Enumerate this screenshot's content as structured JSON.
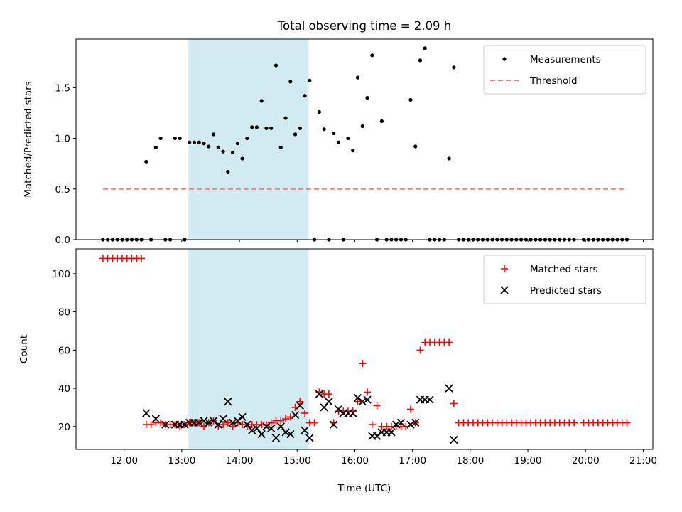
{
  "chart_data": {
    "title": "Total observing time = 2.09 h",
    "highlight_span": {
      "start": "13:07",
      "end": "15:12",
      "color": "#add8e6"
    },
    "x_axis": {
      "label": "Time (UTC)",
      "range": [
        "11:10",
        "21:10"
      ],
      "ticks": [
        "12:00",
        "13:00",
        "14:00",
        "15:00",
        "16:00",
        "17:00",
        "18:00",
        "19:00",
        "20:00",
        "21:00"
      ]
    },
    "panels": [
      {
        "type": "scatter",
        "ylabel": "Matched/Predicted stars",
        "ylim": [
          0,
          1.98
        ],
        "yticks": [
          "0.0",
          "0.5",
          "1.0",
          "1.5"
        ],
        "ytick_values": [
          0,
          0.5,
          1.0,
          1.5
        ],
        "legend": {
          "position": "upper right",
          "entries": [
            "Measurements",
            "Threshold"
          ]
        },
        "series": [
          {
            "name": "Measurements",
            "marker": "dot",
            "color": "#000000",
            "x": [
              "11:38",
              "11:43",
              "11:48",
              "11:53",
              "11:58",
              "12:03",
              "12:08",
              "12:13",
              "12:18",
              "12:23",
              "12:28",
              "12:33",
              "12:38",
              "12:43",
              "12:53",
              "12:48",
              "12:58",
              "13:03",
              "13:08",
              "13:13",
              "13:18",
              "13:23",
              "13:28",
              "13:33",
              "13:38",
              "13:43",
              "13:48",
              "13:53",
              "13:58",
              "14:03",
              "14:08",
              "14:13",
              "14:18",
              "14:23",
              "14:28",
              "14:33",
              "14:38",
              "14:43",
              "14:48",
              "14:53",
              "14:58",
              "15:03",
              "15:08",
              "15:13",
              "15:18",
              "15:23",
              "15:28",
              "15:33",
              "15:38",
              "15:43",
              "15:48",
              "15:53",
              "15:58",
              "16:03",
              "16:08",
              "16:13",
              "16:18",
              "16:23",
              "16:28",
              "16:33",
              "16:38",
              "16:43",
              "16:48",
              "16:53",
              "16:58",
              "17:03",
              "17:08",
              "17:13",
              "17:18",
              "17:23",
              "17:28",
              "17:33",
              "17:38",
              "17:43",
              "17:48",
              "17:53",
              "17:58",
              "18:03",
              "18:08",
              "18:13",
              "18:18",
              "18:23",
              "18:28",
              "18:33",
              "18:38",
              "18:43",
              "18:48",
              "18:53",
              "18:58",
              "19:03",
              "19:08",
              "19:13",
              "19:18",
              "19:23",
              "19:28",
              "19:33",
              "19:38",
              "19:43",
              "19:48",
              "19:58",
              "20:03",
              "20:08",
              "20:13",
              "20:18",
              "20:23",
              "20:28",
              "20:33",
              "20:38",
              "20:43"
            ],
            "y": [
              0,
              0,
              0,
              0,
              0,
              0,
              0,
              0,
              0,
              0.77,
              0,
              0.91,
              1.0,
              0,
              1.0,
              0,
              1.0,
              0,
              0.96,
              0.96,
              0.96,
              0.95,
              0.92,
              1.04,
              0.91,
              0.87,
              0.67,
              0.86,
              0.95,
              0.8,
              1.0,
              1.11,
              1.11,
              1.37,
              1.1,
              1.1,
              1.72,
              0.91,
              1.2,
              1.56,
              1.04,
              1.1,
              1.42,
              1.57,
              0,
              1.26,
              1.09,
              0,
              1.05,
              0.96,
              0,
              1.0,
              0.88,
              1.6,
              1.12,
              1.4,
              1.82,
              0,
              1.17,
              0,
              0,
              0,
              0,
              0,
              1.38,
              0.92,
              1.77,
              1.89,
              0,
              0,
              0,
              0,
              0.8,
              1.7,
              0,
              0,
              0,
              0,
              0,
              0,
              0,
              0,
              0,
              0,
              0,
              0,
              0,
              0,
              0,
              0,
              0,
              0,
              0,
              0,
              0,
              0,
              0,
              0,
              0,
              0,
              0,
              0,
              0,
              0,
              0,
              0,
              0,
              0,
              0
            ]
          },
          {
            "name": "Threshold",
            "style": "dashed",
            "color": "#f08080",
            "x": [
              "11:38",
              "20:43"
            ],
            "y": [
              0.5,
              0.5
            ]
          }
        ]
      },
      {
        "type": "scatter",
        "ylabel": "Count",
        "ylim": [
          8,
          113
        ],
        "yticks": [
          "20",
          "40",
          "60",
          "80",
          "100"
        ],
        "ytick_values": [
          20,
          40,
          60,
          80,
          100
        ],
        "legend": {
          "position": "upper right",
          "entries": [
            "Matched stars",
            "Predicted stars"
          ]
        },
        "series": [
          {
            "name": "Matched stars",
            "marker": "plus",
            "color": "#ff0000",
            "x": [
              "11:38",
              "11:43",
              "11:48",
              "11:53",
              "11:58",
              "12:03",
              "12:08",
              "12:13",
              "12:18",
              "12:23",
              "12:28",
              "12:33",
              "12:38",
              "12:43",
              "12:48",
              "12:53",
              "12:58",
              "13:03",
              "13:08",
              "13:13",
              "13:18",
              "13:23",
              "13:28",
              "13:33",
              "13:38",
              "13:43",
              "13:48",
              "13:53",
              "13:58",
              "14:03",
              "14:08",
              "14:13",
              "14:18",
              "14:23",
              "14:28",
              "14:33",
              "14:38",
              "14:43",
              "14:48",
              "14:53",
              "14:58",
              "15:03",
              "15:08",
              "15:13",
              "15:18",
              "15:23",
              "15:28",
              "15:33",
              "15:38",
              "15:43",
              "15:48",
              "15:53",
              "15:58",
              "16:03",
              "16:08",
              "16:13",
              "16:18",
              "16:23",
              "16:28",
              "16:33",
              "16:38",
              "16:43",
              "16:48",
              "16:53",
              "16:58",
              "17:03",
              "17:08",
              "17:13",
              "17:18",
              "17:23",
              "17:28",
              "17:33",
              "17:38",
              "17:43",
              "17:48",
              "17:53",
              "17:58",
              "18:03",
              "18:08",
              "18:13",
              "18:18",
              "18:23",
              "18:28",
              "18:33",
              "18:38",
              "18:43",
              "18:48",
              "18:53",
              "18:58",
              "19:03",
              "19:08",
              "19:13",
              "19:18",
              "19:23",
              "19:28",
              "19:33",
              "19:38",
              "19:43",
              "19:48",
              "19:58",
              "20:03",
              "20:08",
              "20:13",
              "20:18",
              "20:23",
              "20:28",
              "20:33",
              "20:38",
              "20:43"
            ],
            "y": [
              108,
              108,
              108,
              108,
              108,
              108,
              108,
              108,
              108,
              21,
              21,
              22,
              22,
              21,
              21,
              21,
              20,
              21,
              22,
              22,
              22,
              20,
              22,
              23,
              20,
              21,
              22,
              20,
              22,
              21,
              20,
              21,
              21,
              21,
              21,
              22,
              23,
              23,
              24,
              25,
              30,
              33,
              27,
              22,
              22,
              38,
              37,
              37,
              22,
              28,
              28,
              28,
              28,
              33,
              53,
              38,
              21,
              31,
              20,
              20,
              20,
              20,
              20,
              20,
              29,
              22,
              60,
              64,
              64,
              64,
              64,
              64,
              64,
              32,
              22,
              22,
              22,
              22,
              22,
              22,
              22,
              22,
              22,
              22,
              22,
              22,
              22,
              22,
              22,
              22,
              22,
              22,
              22,
              22,
              22,
              22,
              22,
              22,
              22,
              22,
              22,
              22,
              22,
              22,
              22,
              22,
              22,
              22,
              22
            ]
          },
          {
            "name": "Predicted stars",
            "marker": "x",
            "color": "#000000",
            "x": [
              "12:23",
              "12:33",
              "12:43",
              "12:53",
              "12:58",
              "13:03",
              "13:08",
              "13:13",
              "13:18",
              "13:23",
              "13:28",
              "13:33",
              "13:38",
              "13:43",
              "13:48",
              "13:53",
              "13:58",
              "14:03",
              "14:08",
              "14:13",
              "14:18",
              "14:23",
              "14:28",
              "14:33",
              "14:38",
              "14:43",
              "14:48",
              "14:53",
              "14:58",
              "15:03",
              "15:08",
              "15:13",
              "15:23",
              "15:28",
              "15:33",
              "15:38",
              "15:43",
              "15:48",
              "15:53",
              "15:58",
              "16:03",
              "16:08",
              "16:13",
              "16:18",
              "16:23",
              "16:28",
              "16:33",
              "16:38",
              "16:43",
              "16:48",
              "16:58",
              "17:03",
              "17:08",
              "17:13",
              "17:18",
              "17:38",
              "17:43"
            ],
            "y": [
              27,
              24,
              21,
              21,
              21,
              21,
              22,
              22,
              22,
              23,
              22,
              23,
              21,
              24,
              33,
              22,
              23,
              25,
              21,
              18,
              19,
              16,
              20,
              19,
              14,
              20,
              17,
              16,
              26,
              31,
              18,
              14,
              37,
              30,
              33,
              21,
              29,
              27,
              27,
              27,
              35,
              33,
              34,
              15,
              15,
              17,
              17,
              17,
              21,
              22,
              21,
              22,
              34,
              34,
              34,
              40,
              13
            ]
          }
        ]
      }
    ]
  }
}
